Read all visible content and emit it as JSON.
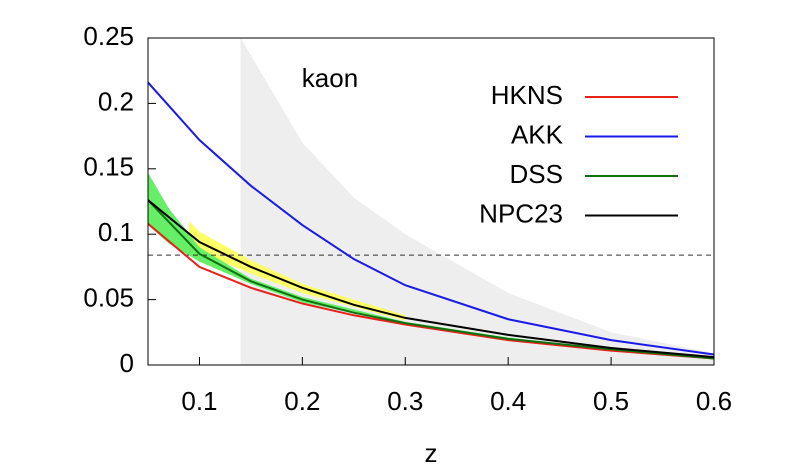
{
  "chart_data": {
    "type": "line",
    "x_label": "z",
    "annotation": "kaon",
    "xlim": [
      0.05,
      0.6
    ],
    "ylim": [
      0,
      0.25
    ],
    "xticks": [
      0.1,
      0.2,
      0.3,
      0.4,
      0.5,
      0.6
    ],
    "yticks": [
      0,
      0.05,
      0.1,
      0.15,
      0.2,
      0.25
    ],
    "hline": 0.084,
    "bands": [
      {
        "color": "#eeeeee",
        "x": [
          0.14,
          0.2,
          0.25,
          0.3,
          0.4,
          0.5,
          0.6
        ],
        "lower": [
          0,
          0,
          0,
          0,
          0,
          0,
          0
        ],
        "upper": [
          0.25,
          0.17,
          0.128,
          0.1,
          0.055,
          0.025,
          0.009
        ]
      },
      {
        "color": "#ffff66",
        "x": [
          0.09,
          0.1,
          0.15,
          0.2,
          0.3
        ],
        "lower": [
          0.085,
          0.086,
          0.07,
          0.055,
          0.034
        ],
        "upper": [
          0.11,
          0.102,
          0.08,
          0.062,
          0.038
        ]
      },
      {
        "color": "#66ee66",
        "x": [
          0.05,
          0.07,
          0.1,
          0.15,
          0.2,
          0.3,
          0.4,
          0.5,
          0.6
        ],
        "lower": [
          0.107,
          0.093,
          0.079,
          0.062,
          0.048,
          0.031,
          0.019,
          0.011,
          0.005
        ],
        "upper": [
          0.147,
          0.12,
          0.09,
          0.066,
          0.052,
          0.033,
          0.021,
          0.012,
          0.005
        ]
      }
    ],
    "x": [
      0.05,
      0.1,
      0.15,
      0.2,
      0.25,
      0.3,
      0.4,
      0.5,
      0.6
    ],
    "series": [
      {
        "name": "HKNS",
        "color": "#e8201a",
        "values": [
          0.108,
          0.075,
          0.059,
          0.047,
          0.038,
          0.031,
          0.019,
          0.011,
          0.005
        ]
      },
      {
        "name": "AKK",
        "color": "#1a1ae8",
        "values": [
          0.216,
          0.172,
          0.137,
          0.107,
          0.081,
          0.061,
          0.035,
          0.019,
          0.008
        ]
      },
      {
        "name": "DSS",
        "color": "#107010",
        "values": [
          0.126,
          0.085,
          0.064,
          0.05,
          0.04,
          0.032,
          0.02,
          0.012,
          0.005
        ]
      },
      {
        "name": "NPC23",
        "color": "#000000",
        "values": [
          0.126,
          0.094,
          0.075,
          0.059,
          0.046,
          0.036,
          0.023,
          0.013,
          0.006
        ]
      }
    ]
  }
}
